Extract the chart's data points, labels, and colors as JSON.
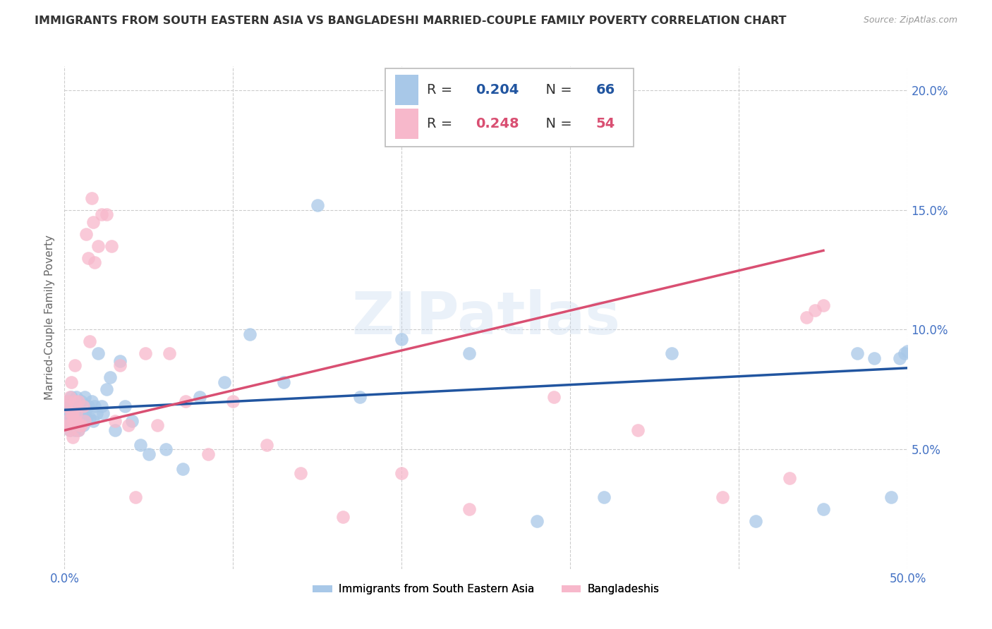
{
  "title": "IMMIGRANTS FROM SOUTH EASTERN ASIA VS BANGLADESHI MARRIED-COUPLE FAMILY POVERTY CORRELATION CHART",
  "source": "Source: ZipAtlas.com",
  "ylabel": "Married-Couple Family Poverty",
  "series1_label": "Immigrants from South Eastern Asia",
  "series1_color": "#a8c8e8",
  "series1_line_color": "#2155a0",
  "series1_R": "0.204",
  "series1_N": "66",
  "series2_label": "Bangladeshis",
  "series2_color": "#f7b8cb",
  "series2_line_color": "#d94f72",
  "series2_R": "0.248",
  "series2_N": "54",
  "xmin": 0.0,
  "xmax": 0.5,
  "ymin": 0.0,
  "ymax": 0.21,
  "yticks": [
    0.05,
    0.1,
    0.15,
    0.2
  ],
  "ytick_labels": [
    "5.0%",
    "10.0%",
    "15.0%",
    "20.0%"
  ],
  "xtick_labels": [
    "0.0%",
    "",
    "",
    "",
    "",
    "50.0%"
  ],
  "watermark": "ZIPatlas",
  "background_color": "#ffffff",
  "grid_color": "#cccccc",
  "title_color": "#333333",
  "tick_color": "#4472c4",
  "series1_x": [
    0.001,
    0.001,
    0.002,
    0.002,
    0.003,
    0.003,
    0.003,
    0.004,
    0.004,
    0.004,
    0.005,
    0.005,
    0.005,
    0.006,
    0.006,
    0.006,
    0.007,
    0.007,
    0.008,
    0.008,
    0.009,
    0.009,
    0.01,
    0.01,
    0.011,
    0.012,
    0.012,
    0.013,
    0.014,
    0.015,
    0.016,
    0.017,
    0.018,
    0.019,
    0.02,
    0.022,
    0.023,
    0.025,
    0.027,
    0.03,
    0.033,
    0.036,
    0.04,
    0.045,
    0.05,
    0.06,
    0.07,
    0.08,
    0.095,
    0.11,
    0.13,
    0.15,
    0.175,
    0.2,
    0.24,
    0.28,
    0.32,
    0.36,
    0.41,
    0.45,
    0.47,
    0.48,
    0.49,
    0.495,
    0.498,
    0.5
  ],
  "series1_y": [
    0.07,
    0.065,
    0.068,
    0.062,
    0.065,
    0.07,
    0.058,
    0.062,
    0.065,
    0.072,
    0.06,
    0.065,
    0.068,
    0.062,
    0.07,
    0.058,
    0.065,
    0.072,
    0.062,
    0.058,
    0.068,
    0.063,
    0.065,
    0.07,
    0.06,
    0.065,
    0.072,
    0.063,
    0.068,
    0.063,
    0.07,
    0.062,
    0.068,
    0.065,
    0.09,
    0.068,
    0.065,
    0.075,
    0.08,
    0.058,
    0.087,
    0.068,
    0.062,
    0.052,
    0.048,
    0.05,
    0.042,
    0.072,
    0.078,
    0.098,
    0.078,
    0.152,
    0.072,
    0.096,
    0.09,
    0.02,
    0.03,
    0.09,
    0.02,
    0.025,
    0.09,
    0.088,
    0.03,
    0.088,
    0.09,
    0.091
  ],
  "series2_x": [
    0.001,
    0.001,
    0.002,
    0.002,
    0.003,
    0.003,
    0.004,
    0.004,
    0.005,
    0.005,
    0.005,
    0.006,
    0.006,
    0.006,
    0.007,
    0.007,
    0.008,
    0.008,
    0.009,
    0.01,
    0.011,
    0.012,
    0.013,
    0.014,
    0.015,
    0.016,
    0.017,
    0.018,
    0.02,
    0.022,
    0.025,
    0.028,
    0.03,
    0.033,
    0.038,
    0.042,
    0.048,
    0.055,
    0.062,
    0.072,
    0.085,
    0.1,
    0.12,
    0.14,
    0.165,
    0.2,
    0.24,
    0.29,
    0.34,
    0.39,
    0.43,
    0.44,
    0.445,
    0.45
  ],
  "series2_y": [
    0.068,
    0.062,
    0.07,
    0.06,
    0.072,
    0.058,
    0.065,
    0.078,
    0.062,
    0.065,
    0.055,
    0.07,
    0.062,
    0.085,
    0.062,
    0.065,
    0.07,
    0.058,
    0.06,
    0.06,
    0.068,
    0.062,
    0.14,
    0.13,
    0.095,
    0.155,
    0.145,
    0.128,
    0.135,
    0.148,
    0.148,
    0.135,
    0.062,
    0.085,
    0.06,
    0.03,
    0.09,
    0.06,
    0.09,
    0.07,
    0.048,
    0.07,
    0.052,
    0.04,
    0.022,
    0.04,
    0.025,
    0.072,
    0.058,
    0.03,
    0.038,
    0.105,
    0.108,
    0.11
  ],
  "line1_x0": 0.0,
  "line1_y0": 0.0665,
  "line1_x1": 0.5,
  "line1_y1": 0.084,
  "line2_x0": 0.0,
  "line2_y0": 0.058,
  "line2_x1": 0.45,
  "line2_y1": 0.133
}
